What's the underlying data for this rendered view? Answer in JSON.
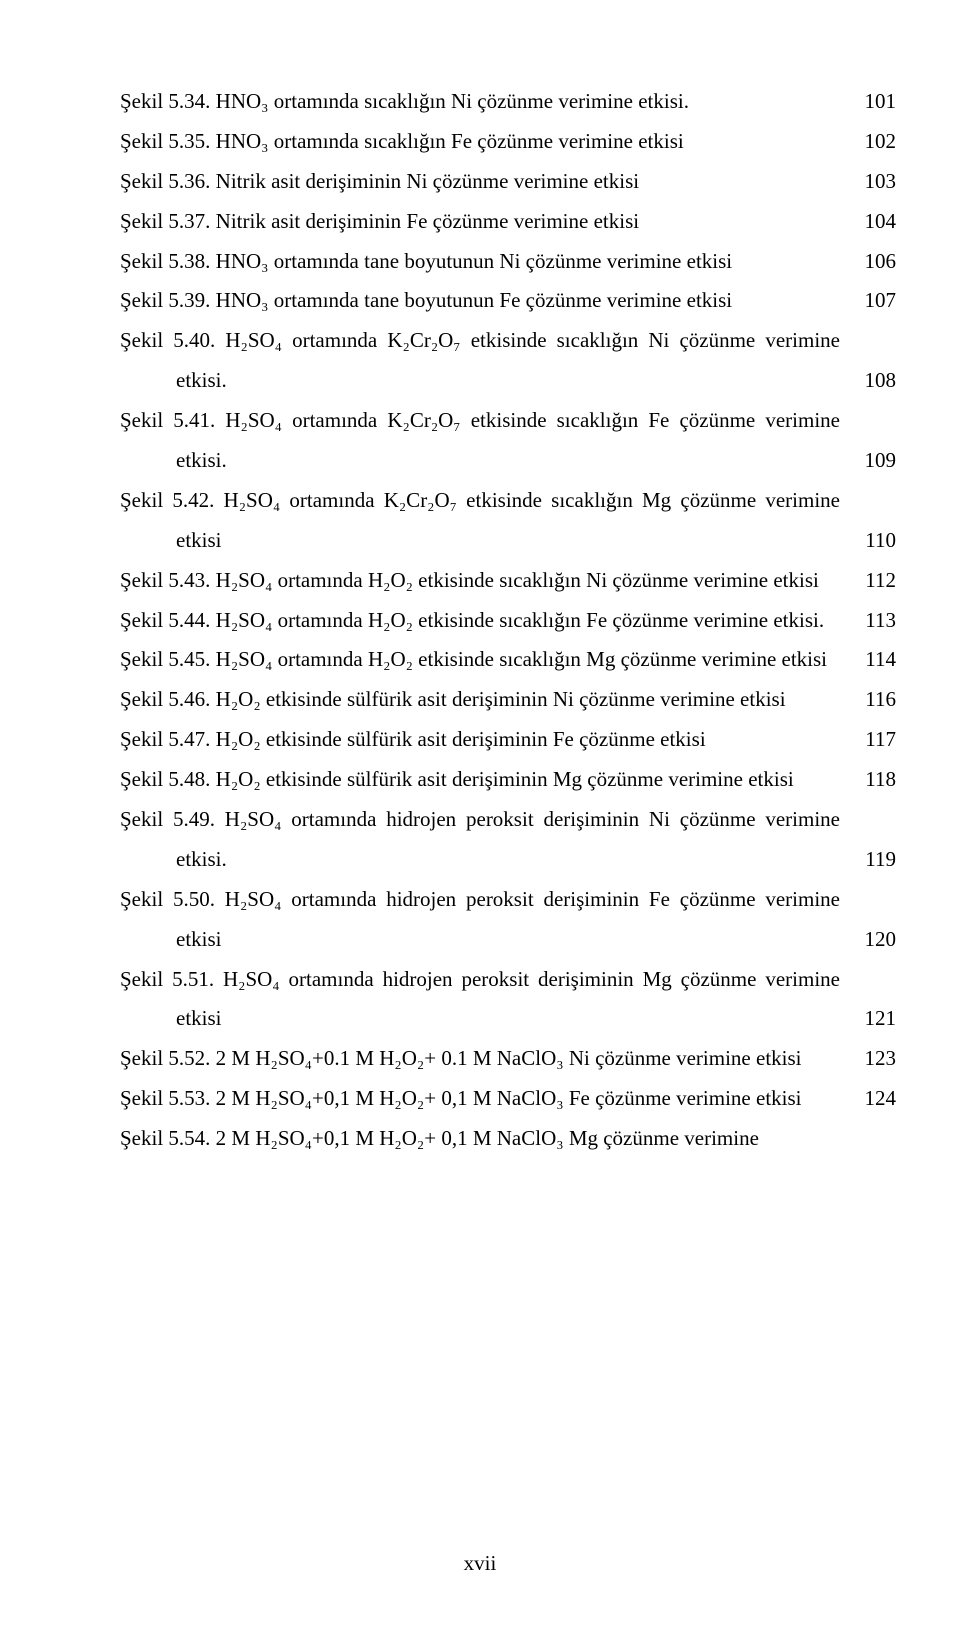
{
  "entries": [
    {
      "text": "Şekil 5.34. HNO₃ ortamında sıcaklığın Ni çözünme verimine etkisi.",
      "page": "101",
      "hang": true
    },
    {
      "text": "Şekil 5.35. HNO₃ ortamında sıcaklığın Fe çözünme verimine etkisi",
      "page": "102",
      "hang": true
    },
    {
      "text": "Şekil 5.36. Nitrik asit derişiminin Ni çözünme verimine etkisi",
      "page": "103",
      "hang": true
    },
    {
      "text": "Şekil 5.37. Nitrik asit derişiminin Fe çözünme verimine etkisi",
      "page": "104",
      "hang": true
    },
    {
      "text": "Şekil 5.38. HNO₃ ortamında tane boyutunun Ni çözünme verimine etkisi",
      "page": "106",
      "hang": true
    },
    {
      "text": "Şekil 5.39. HNO₃ ortamında tane boyutunun Fe çözünme verimine etkisi",
      "page": "107",
      "hang": true
    },
    {
      "text": "Şekil 5.40. H₂SO₄ ortamında K₂Cr₂O₇ etkisinde sıcaklığın Ni çözünme verimine etkisi.",
      "page": "108",
      "hang": true,
      "wrap": true
    },
    {
      "text": "Şekil 5.41. H₂SO₄ ortamında K₂Cr₂O₇ etkisinde sıcaklığın Fe çözünme verimine etkisi.",
      "page": "109",
      "hang": true,
      "wrap": true
    },
    {
      "text": "Şekil 5.42. H₂SO₄ ortamında K₂Cr₂O₇ etkisinde sıcaklığın Mg çözünme verimine etkisi",
      "page": "110",
      "hang": true,
      "wrap": true
    },
    {
      "text": "Şekil 5.43. H₂SO₄ ortamında H₂O₂ etkisinde sıcaklığın Ni çözünme verimine etkisi",
      "page": "112",
      "hang": true,
      "wrap": true
    },
    {
      "text": "Şekil 5.44. H₂SO₄ ortamında H₂O₂ etkisinde sıcaklığın Fe çözünme verimine etkisi.",
      "page": "113",
      "hang": true,
      "wrap": true
    },
    {
      "text": "Şekil 5.45. H₂SO₄ ortamında H₂O₂ etkisinde sıcaklığın Mg çözünme verimine etkisi",
      "page": "114",
      "hang": true,
      "wrap": true
    },
    {
      "text": "Şekil 5.46. H₂O₂ etkisinde sülfürik asit derişiminin Ni çözünme verimine etkisi",
      "page": "116",
      "hang": true
    },
    {
      "text": "Şekil 5.47. H₂O₂ etkisinde sülfürik asit derişiminin Fe çözünme etkisi",
      "page": "117",
      "hang": true
    },
    {
      "text": "Şekil 5.48. H₂O₂ etkisinde sülfürik asit derişiminin Mg çözünme verimine etkisi",
      "page": "118",
      "hang": true
    },
    {
      "text": "Şekil 5.49. H₂SO₄ ortamında hidrojen peroksit derişiminin Ni çözünme verimine etkisi.",
      "page": "119",
      "hang": true,
      "wrap": true
    },
    {
      "text": "Şekil 5.50. H₂SO₄ ortamında hidrojen peroksit derişiminin Fe çözünme verimine etkisi",
      "page": "120",
      "hang": true,
      "wrap": true
    },
    {
      "text": "Şekil 5.51. H₂SO₄ ortamında hidrojen peroksit derişiminin Mg çözünme verimine etkisi",
      "page": "121",
      "hang": true,
      "wrap": true
    },
    {
      "text": "Şekil 5.52. 2 M H₂SO₄+0.1 M H₂O₂+ 0.1 M NaClO₃ Ni çözünme verimine etkisi",
      "page": "123",
      "hang": true,
      "wrap": true
    },
    {
      "text": "Şekil 5.53. 2 M H₂SO₄+0,1 M H₂O₂+ 0,1 M NaClO₃ Fe çözünme verimine etkisi",
      "page": "124",
      "hang": true,
      "wrap": true
    },
    {
      "text": "Şekil 5.54. 2 M H₂SO₄+0,1 M H₂O₂+ 0,1 M NaClO₃ Mg çözünme verimine",
      "page": "",
      "hang": true
    }
  ],
  "footer": "xvii"
}
